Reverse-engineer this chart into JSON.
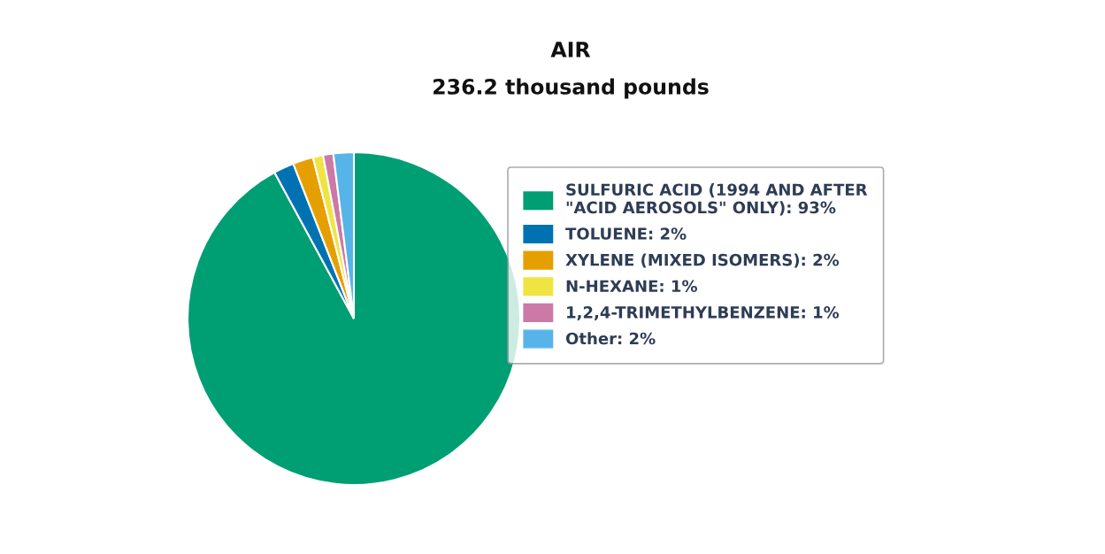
{
  "chart_data": {
    "type": "pie",
    "title": "AIR",
    "subtitle": "236.2 thousand pounds",
    "categories": [
      "SULFURIC ACID (1994 AND AFTER\n\"ACID AEROSOLS\" ONLY): 93%",
      "TOLUENE: 2%",
      "XYLENE (MIXED ISOMERS): 2%",
      "N-HEXANE: 1%",
      "1,2,4-TRIMETHYLBENZENE: 1%",
      "Other: 2%"
    ],
    "values": [
      93,
      2,
      2,
      1,
      1,
      2
    ],
    "colors": [
      "#009e73",
      "#0072b2",
      "#e69f00",
      "#f0e442",
      "#cc79a7",
      "#56b4e9"
    ],
    "legend": "right"
  }
}
